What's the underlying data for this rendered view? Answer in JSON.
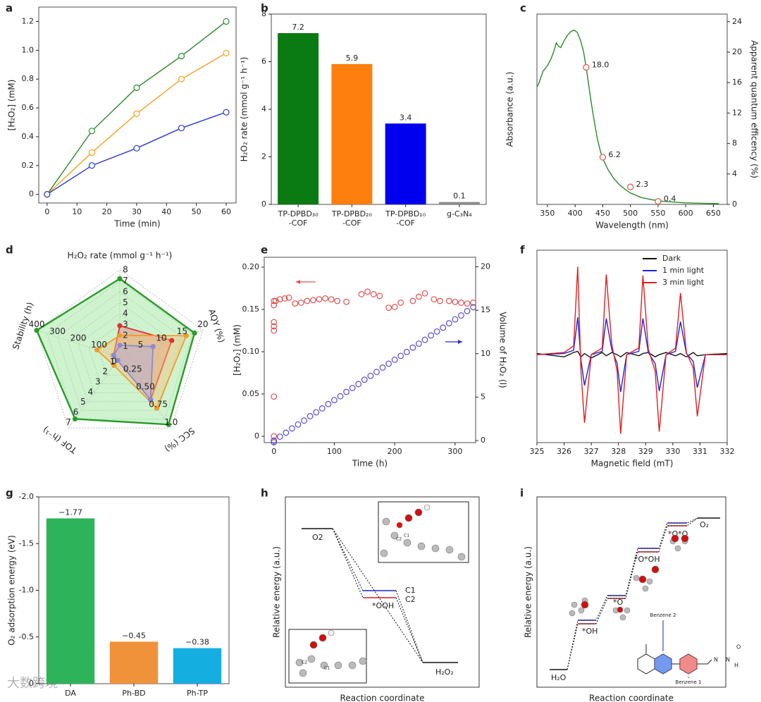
{
  "watermark": "大数跨境",
  "chart_data": [
    {
      "panel": "a",
      "type": "line",
      "xlabel": "Time (min)",
      "ylabel": "[H₂O₂] (mM)",
      "marker": true,
      "x": [
        0,
        15,
        30,
        45,
        60
      ],
      "xlim": [
        -2.8,
        63.3
      ],
      "xticks": [
        0,
        10,
        20,
        30,
        40,
        50,
        60
      ],
      "ylim": [
        -0.06,
        1.3
      ],
      "yticks": [
        0,
        0.2,
        0.4,
        0.6,
        0.8,
        {
          "value": 1,
          "label": "1.0"
        },
        1.2
      ],
      "series": [
        {
          "color": "#2a8a2a",
          "values": [
            0,
            0.44,
            0.74,
            0.96,
            1.2
          ]
        },
        {
          "color": "#f5a020",
          "values": [
            0,
            0.29,
            0.56,
            0.8,
            0.98
          ]
        },
        {
          "color": "#2b3bd0",
          "values": [
            0,
            0.2,
            0.32,
            0.46,
            0.57
          ]
        }
      ]
    },
    {
      "panel": "b",
      "type": "bar",
      "ylabel": "H₂O₂ rate (mmol g⁻¹ h⁻¹)",
      "categories": [
        "TP-DPBD₃₀\n-COF",
        "TP-DPBD₂₀\n-COF",
        "TP-DPBD₁₀\n-COF",
        "g-C₃N₄"
      ],
      "values": [
        7.2,
        5.9,
        3.4,
        0.1
      ],
      "colors": [
        "#0a7a12",
        "#ff7f0e",
        "#0000ee",
        "#8c8c8c"
      ],
      "ylim": [
        0,
        8
      ],
      "yticks": [
        0,
        2,
        4,
        6,
        8
      ]
    },
    {
      "panel": "c",
      "type": "line",
      "xlabel": "Wavelength (nm)",
      "ylabel": "Absorbance (a.u.)",
      "ylabel_color": "#2a8a2a",
      "y2label": "Apparent quantum efficency (%)",
      "y2label_color": "#d94040",
      "xlim": [
        331,
        675
      ],
      "xticks": [
        350,
        400,
        450,
        500,
        550,
        600,
        650
      ],
      "ylim": [
        0,
        25
      ],
      "y2lim": [
        0,
        25
      ],
      "y2ticks": [
        0,
        4,
        8,
        12,
        16,
        20,
        24
      ],
      "series": [
        {
          "color": "#2a8a2a",
          "line": true,
          "marker": false,
          "x": [
            332,
            335,
            342,
            350,
            357,
            362,
            366,
            370,
            374,
            380,
            386,
            392,
            398,
            404,
            410,
            415,
            420,
            425,
            430,
            435,
            440,
            445,
            450,
            460,
            470,
            480,
            490,
            500,
            520,
            540,
            560,
            580,
            600,
            630,
            660
          ],
          "values": [
            15.5,
            16.0,
            17.5,
            18.2,
            19.2,
            20.2,
            21.2,
            20.8,
            20.6,
            21.5,
            22.2,
            22.7,
            22.9,
            22.6,
            21.5,
            20.2,
            18.0,
            15.5,
            13.0,
            10.8,
            8.7,
            7.2,
            6.0,
            4.5,
            3.4,
            2.6,
            2.0,
            1.5,
            0.9,
            0.6,
            0.4,
            0.3,
            0.2,
            0.15,
            0.1
          ]
        },
        {
          "color": "#e05050",
          "axis": "y2",
          "line": false,
          "marker": true,
          "x": [
            420,
            450,
            500,
            550
          ],
          "values": [
            18,
            6.2,
            2.3,
            0.4
          ],
          "value_labels": [
            "18.0",
            "6.2",
            "2.3",
            "0.4"
          ]
        }
      ]
    },
    {
      "panel": "d",
      "type": "radar",
      "origin": 0,
      "axes": [
        {
          "label": "H₂O₂ rate (mmol g⁻¹ h⁻¹)",
          "lim": [
            0,
            8
          ],
          "ticks": [
            1,
            2,
            3,
            4,
            5,
            6,
            7,
            8
          ]
        },
        {
          "label": "AQY (%)",
          "lim": [
            0,
            20
          ],
          "ticks": [
            5,
            10,
            15,
            20
          ]
        },
        {
          "label": "SCC (%)",
          "lim": [
            0,
            1
          ],
          "ticks": [
            0.25,
            {
              "value": 0.5,
              "label": "0.50"
            },
            0.75,
            {
              "value": 1,
              "label": "1.0"
            }
          ]
        },
        {
          "label": "TOF (h⁻¹)",
          "lim": [
            0,
            7
          ],
          "ticks": [
            1,
            2,
            3,
            4,
            5,
            6,
            7
          ]
        },
        {
          "label": "Stability (h)",
          "lim": [
            0,
            400
          ],
          "ticks": [
            100,
            200,
            300,
            400
          ]
        }
      ],
      "series": [
        {
          "color": "#2a9a2a",
          "fill": "#9fe89f",
          "values": [
            7.2,
            18,
            0.95,
            6.1,
            400
          ]
        },
        {
          "color": "#e03030",
          "fill": "#e08080",
          "values": [
            2.9,
            12.5,
            0.6,
            0.3,
            30
          ]
        },
        {
          "color": "#f39a2b",
          "fill": "#f5c27a",
          "values": [
            2,
            16,
            0.72,
            0.8,
            110
          ]
        },
        {
          "color": "#8a8ad8",
          "fill": "#b0b0e0",
          "values": [
            1.1,
            8,
            0.6,
            0.3,
            30
          ]
        }
      ]
    },
    {
      "panel": "e",
      "type": "scatter",
      "xlabel": "Time (h)",
      "ylabel": "[H₂O₂] (mM)",
      "ylabel_color": "#d94040",
      "y2label": "Volume of H₂O₂ (l)",
      "y2label_color": "#2b2bd0",
      "xlim": [
        -16,
        334
      ],
      "xticks": [
        0,
        100,
        200,
        300
      ],
      "ylim": [
        -0.0075,
        0.2117
      ],
      "yticks": [
        0,
        0.05,
        {
          "value": 0.1,
          "label": "0.10"
        },
        0.15,
        {
          "value": 0.2,
          "label": "0.20"
        }
      ],
      "y2lim": [
        -0.24,
        21.1
      ],
      "y2ticks": [
        0,
        5,
        10,
        15,
        20
      ],
      "series": [
        {
          "color": "#e05050",
          "marker": true,
          "line": false,
          "x": [
            0,
            0,
            0,
            0,
            0,
            0,
            0,
            3,
            10,
            18,
            25,
            35,
            45,
            55,
            65,
            75,
            85,
            95,
            105,
            120,
            145,
            155,
            165,
            175,
            190,
            200,
            210,
            230,
            240,
            250,
            265,
            275,
            290,
            300,
            310,
            320,
            330
          ],
          "values": [
            0,
            0.047,
            0.125,
            0.13,
            0.135,
            0.155,
            0.16,
            0.16,
            0.162,
            0.163,
            0.164,
            0.157,
            0.158,
            0.16,
            0.161,
            0.162,
            0.163,
            0.162,
            0.16,
            0.159,
            0.168,
            0.171,
            0.168,
            0.166,
            0.152,
            0.153,
            0.158,
            0.16,
            0.165,
            0.169,
            0.162,
            0.16,
            0.16,
            0.159,
            0.158,
            0.157,
            0.158
          ]
        },
        {
          "color": "#5a4ad0",
          "axis": "y2",
          "marker": true,
          "line": false,
          "x": [
            0,
            0,
            10,
            20,
            30,
            40,
            50,
            60,
            70,
            80,
            90,
            100,
            110,
            120,
            130,
            140,
            150,
            160,
            170,
            180,
            190,
            200,
            210,
            220,
            230,
            240,
            250,
            260,
            270,
            280,
            290,
            300,
            310,
            320,
            330
          ],
          "values": [
            -0.2,
            0,
            0.45,
            0.9,
            1.4,
            1.85,
            2.3,
            2.8,
            3.25,
            3.7,
            4.2,
            4.65,
            5.1,
            5.6,
            6.05,
            6.5,
            7.0,
            7.45,
            7.9,
            8.4,
            8.85,
            9.3,
            9.75,
            10.2,
            10.7,
            11.15,
            11.6,
            12.1,
            12.55,
            13.0,
            13.5,
            13.95,
            14.4,
            14.9,
            15.35
          ]
        }
      ]
    },
    {
      "panel": "f",
      "type": "line",
      "xlabel": "Magnetic field (mT)",
      "legend": "upper right",
      "marker": false,
      "x": [
        325,
        326,
        326.35,
        326.5,
        326.62,
        326.75,
        327,
        327.4,
        327.55,
        327.75,
        327.95,
        328.08,
        328.3,
        328.75,
        328.9,
        329.1,
        329.35,
        329.5,
        329.75,
        330.1,
        330.28,
        330.5,
        330.75,
        330.9,
        331.2,
        332
      ],
      "xlim": [
        325,
        332
      ],
      "xticks": [
        325,
        326,
        327,
        328,
        329,
        330,
        331,
        332
      ],
      "ylim": [
        -0.8,
        0.95
      ],
      "series": [
        {
          "name": "Dark",
          "color": "#111111",
          "values": [
            0.01,
            -0.02,
            0.02,
            0.03,
            -0.02,
            0.01,
            -0.03,
            0.02,
            -0.01,
            0.02,
            0,
            -0.02,
            0.02,
            -0.01,
            0.01,
            0.02,
            -0.02,
            0,
            0.02,
            -0.01,
            0.01,
            -0.02,
            0.02,
            -0.01,
            0,
            0.01
          ]
        },
        {
          "name": "1 min light",
          "color": "#2020e0",
          "values": [
            0,
            0.01,
            0.04,
            0.34,
            -0.05,
            -0.28,
            0,
            0.03,
            0.33,
            0.05,
            -0.08,
            -0.34,
            0,
            0.03,
            0.33,
            0.02,
            -0.08,
            -0.33,
            0,
            0.03,
            0.3,
            0.01,
            -0.06,
            -0.3,
            0,
            0
          ]
        },
        {
          "name": "3 min light",
          "color": "#e02020",
          "values": [
            0,
            0.02,
            0.08,
            0.8,
            -0.15,
            -0.62,
            0,
            0.06,
            0.73,
            0.1,
            -0.15,
            -0.72,
            0,
            0.06,
            0.72,
            0.05,
            -0.15,
            -0.7,
            0,
            0.06,
            0.56,
            0.02,
            -0.12,
            -0.56,
            0,
            0
          ]
        }
      ]
    },
    {
      "panel": "g",
      "type": "bar",
      "ylabel": "O₂ adsorption energy (eV)",
      "categories": [
        "DA",
        "Ph-BD",
        "Ph-TP"
      ],
      "values": [
        -1.77,
        -0.45,
        -0.38
      ],
      "value_labels": [
        "−1.77",
        "−0.45",
        "−0.38"
      ],
      "colors": [
        "#2db45a",
        "#f0923a",
        "#14aee0"
      ],
      "ylim": [
        0,
        -2.0
      ],
      "yticks": [
        {
          "value": -2,
          "label": "-2.0"
        },
        {
          "value": -1.5,
          "label": "-1.5"
        },
        {
          "value": -1,
          "label": "-1.0"
        },
        {
          "value": -0.5,
          "label": "-0.5"
        },
        0
      ]
    },
    {
      "panel": "h",
      "type": "diagram",
      "xlabel": "Reaction coordinate",
      "ylabel": "Relative energy (a.u.)",
      "level_labels": [
        "O2",
        "C1",
        "C2",
        "*OOH",
        "H₂O₂"
      ],
      "atom_labels": [
        "C2",
        "C1",
        "C2",
        "C1"
      ]
    },
    {
      "panel": "i",
      "type": "diagram",
      "xlabel": "Reaction coordinate",
      "ylabel": "Relative energy (a.u.)",
      "level_labels": [
        "H₂O",
        "*OH",
        "*O",
        "*O*OH",
        "*O*O",
        "O₂"
      ],
      "callouts": [
        "Benzene 2",
        "Benzene 1"
      ],
      "atom_labels": [
        "N",
        "N",
        "H",
        "O"
      ]
    }
  ]
}
